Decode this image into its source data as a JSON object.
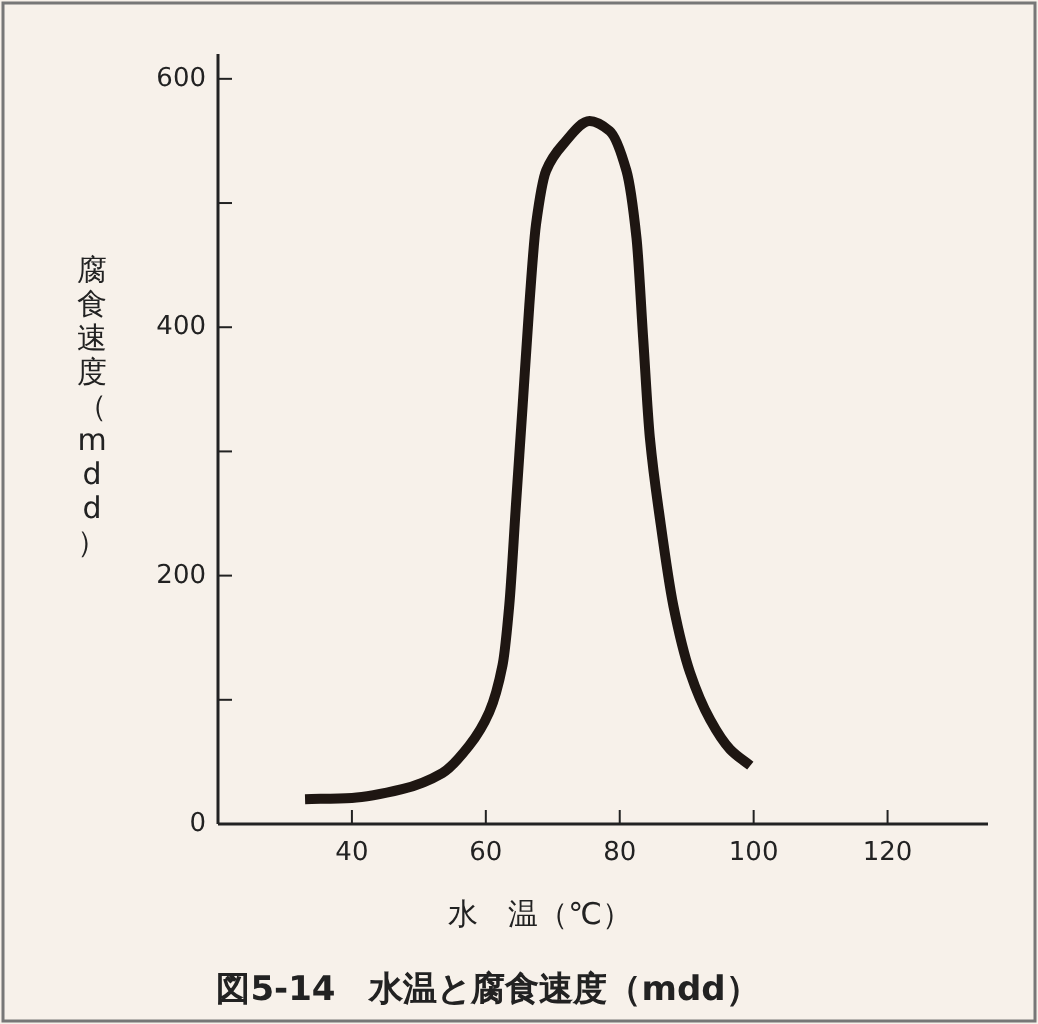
{
  "chart_data": {
    "type": "line",
    "title": "図5-14　水温と腐食速度（mdd）",
    "xlabel": "水　温（℃）",
    "ylabel": "腐食速度（mdd）",
    "x": [
      33,
      40,
      47.5,
      53.5,
      57.5,
      60.5,
      62.5,
      63.5,
      64.5,
      65.5,
      66.5,
      67.5,
      69,
      71.5,
      75.5,
      78.5,
      81,
      82.5,
      83.5,
      84.5,
      86,
      88,
      90.5,
      93.5,
      96.5,
      99.5
    ],
    "series": [
      {
        "color": "#1e1612",
        "values": [
          20,
          21,
          28,
          41,
          63,
          90,
          128,
          176,
          257,
          337,
          418,
          483,
          526,
          547,
          566,
          558,
          526,
          472,
          391,
          311,
          246,
          176,
          122,
          84,
          60,
          47
        ]
      }
    ],
    "xlim": [
      20,
      135
    ],
    "ylim": [
      0,
      620
    ],
    "xticks": [
      40,
      60,
      80,
      100,
      120
    ],
    "yticks": [
      0,
      {
        "value": 100,
        "label": null
      },
      200,
      {
        "value": 300,
        "label": null
      },
      400,
      {
        "value": 500,
        "label": null
      },
      600
    ],
    "grid": false,
    "marker": "none",
    "line_style": "solid"
  }
}
